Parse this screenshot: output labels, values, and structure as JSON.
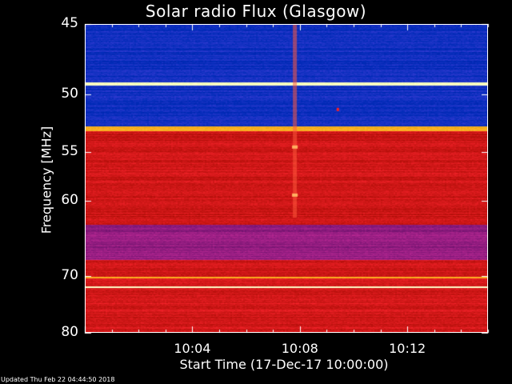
{
  "chart_data": {
    "type": "heatmap",
    "title": "Solar radio Flux (Glasgow)",
    "xlabel": "Start Time (17-Dec-17 10:00:00)",
    "ylabel": "Frequency [MHz]",
    "ylim": [
      45,
      80
    ],
    "xlim_minutes": [
      0,
      15
    ],
    "y_scale": "reciprocal",
    "yticks": [
      45,
      50,
      55,
      60,
      70,
      80
    ],
    "ytick_labels": [
      "45",
      "50",
      "55",
      "60",
      "70",
      "80"
    ],
    "xtick_minutes": [
      4,
      8,
      12
    ],
    "xtick_labels": [
      "10:04",
      "10:08",
      "10:12"
    ],
    "bands": [
      {
        "from": 45.0,
        "to": 49.0,
        "level": "low"
      },
      {
        "from": 49.0,
        "to": 49.3,
        "level": "very high"
      },
      {
        "from": 49.3,
        "to": 52.6,
        "level": "low"
      },
      {
        "from": 52.6,
        "to": 53.0,
        "level": "high"
      },
      {
        "from": 53.0,
        "to": 62.8,
        "level": "medium"
      },
      {
        "from": 62.8,
        "to": 67.5,
        "level": "low-medium"
      },
      {
        "from": 67.5,
        "to": 70.0,
        "level": "medium"
      },
      {
        "from": 70.0,
        "to": 70.3,
        "level": "high"
      },
      {
        "from": 70.3,
        "to": 71.5,
        "level": "medium"
      },
      {
        "from": 71.5,
        "to": 71.8,
        "level": "very high"
      },
      {
        "from": 71.8,
        "to": 80.0,
        "level": "medium"
      }
    ],
    "events": [
      {
        "minute": 7.8,
        "from": 45.0,
        "to": 62.0,
        "note": "vertical streak"
      },
      {
        "minute": 7.8,
        "freq": 54.5,
        "note": "bright spot"
      },
      {
        "minute": 7.8,
        "freq": 59.4,
        "note": "bright spot"
      },
      {
        "minute": 9.4,
        "freq": 51.2,
        "note": "red spot"
      }
    ],
    "colors": {
      "low": "#1030c0",
      "medium": "#d01818",
      "high": "#ffb020",
      "very high": "#ffffc0"
    }
  },
  "footer": "Updated Thu Feb 22 04:44:50 2018"
}
